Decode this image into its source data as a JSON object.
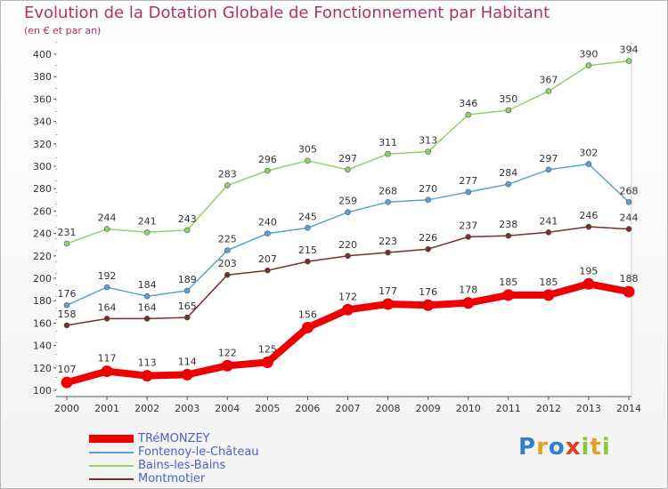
{
  "chart_data": {
    "type": "line",
    "title": "Evolution de la Dotation Globale de Fonctionnement par Habitant",
    "subtitle": "(en € et par an)",
    "xlabel": "",
    "ylabel": "",
    "ylim": [
      100,
      400
    ],
    "yticks": [
      100,
      120,
      140,
      160,
      180,
      200,
      220,
      240,
      260,
      280,
      300,
      320,
      340,
      360,
      380,
      400
    ],
    "categories": [
      "2000",
      "2001",
      "2002",
      "2003",
      "2004",
      "2005",
      "2006",
      "2007",
      "2008",
      "2009",
      "2010",
      "2011",
      "2012",
      "2013",
      "2014"
    ],
    "grid": false,
    "legend_position": "bottom-left",
    "series": [
      {
        "name": "Montmotier",
        "color": "#772e2e",
        "values": [
          158,
          164,
          164,
          165,
          203,
          207,
          215,
          220,
          223,
          226,
          237,
          238,
          241,
          246,
          244
        ]
      },
      {
        "name": "Bains-les-Bains",
        "color": "#8fd26a",
        "values": [
          231,
          244,
          241,
          243,
          283,
          296,
          305,
          297,
          311,
          313,
          346,
          350,
          367,
          390,
          394
        ]
      },
      {
        "name": "Fontenoy-le-Château",
        "color": "#5e9fd6",
        "values": [
          176,
          192,
          184,
          189,
          225,
          240,
          245,
          259,
          268,
          270,
          277,
          284,
          297,
          302,
          268
        ]
      },
      {
        "name": "TRéMONZEY",
        "color": "#ee0000",
        "values": [
          107,
          117,
          113,
          114,
          122,
          125,
          156,
          172,
          177,
          176,
          178,
          185,
          185,
          195,
          188
        ]
      }
    ],
    "legend_order": [
      "TRéMONZEY",
      "Fontenoy-le-Château",
      "Bains-les-Bains",
      "Montmotier"
    ]
  },
  "logo": {
    "letters": [
      "P",
      "r",
      "o",
      "x",
      "i",
      "t",
      "i"
    ],
    "colors": [
      "#2f80c9",
      "#e8a020",
      "#2f80c9",
      "#e63a1a",
      "#8cc43c",
      "#e8a020",
      "#8cc43c"
    ]
  }
}
